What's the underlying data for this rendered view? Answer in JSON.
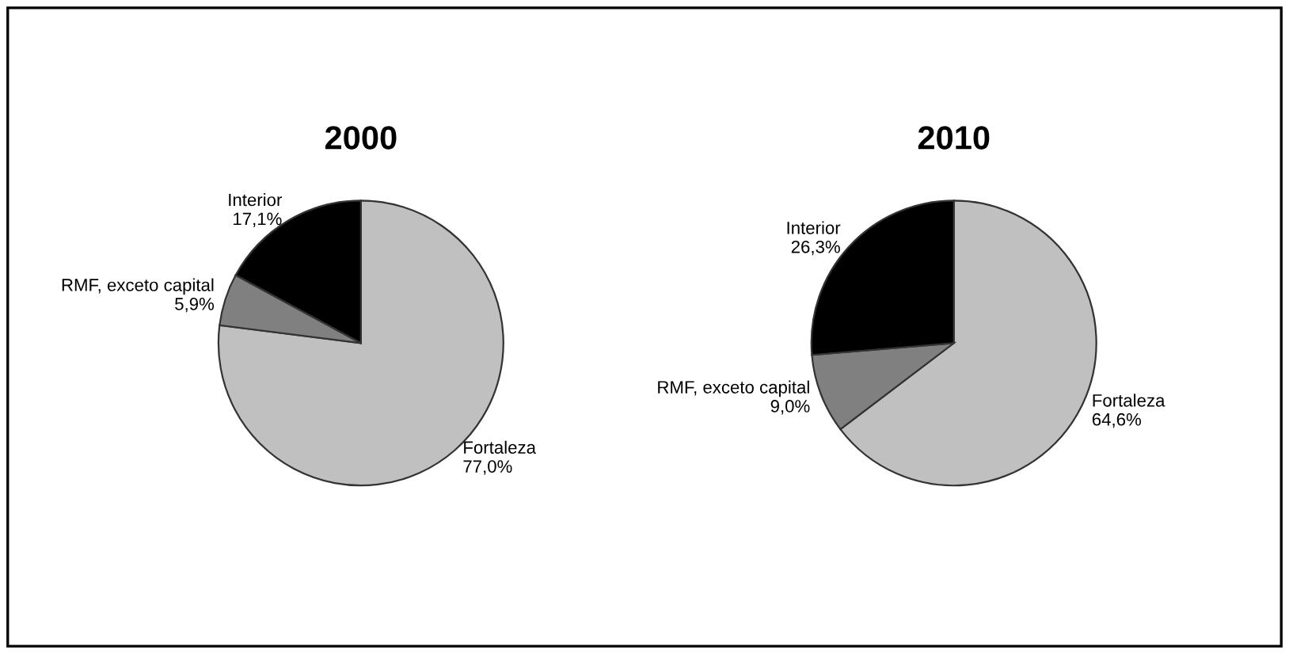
{
  "chart_data": [
    {
      "type": "pie",
      "title": "2000",
      "categories": [
        "Fortaleza",
        "RMF, exceto capital",
        "Interior"
      ],
      "values": [
        77.0,
        5.9,
        17.1
      ],
      "value_labels": [
        "77,0%",
        "5,9%",
        "17,1%"
      ],
      "colors": [
        "#c0c0c0",
        "#808080",
        "#000000"
      ]
    },
    {
      "type": "pie",
      "title": "2010",
      "categories": [
        "Fortaleza",
        "RMF, exceto capital",
        "Interior"
      ],
      "values": [
        64.6,
        9.0,
        26.3
      ],
      "value_labels": [
        "64,6%",
        "9,0%",
        "26,3%"
      ],
      "colors": [
        "#c0c0c0",
        "#808080",
        "#000000"
      ]
    }
  ]
}
